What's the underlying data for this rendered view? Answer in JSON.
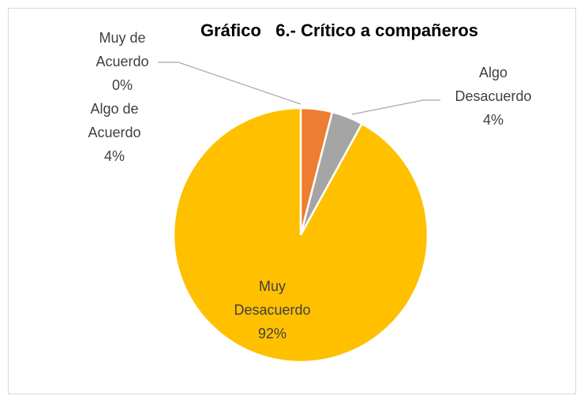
{
  "chart_data": {
    "type": "pie",
    "title": "Gráfico   6.- Crítico a compañeros",
    "categories": [
      "Muy de Acuerdo",
      "Algo de Acuerdo",
      "Algo Desacuerdo",
      "Muy Desacuerdo"
    ],
    "values": [
      0,
      4,
      4,
      92
    ],
    "value_labels": [
      "0%",
      "4%",
      "4%",
      "92%"
    ],
    "colors": [
      "#4472c4",
      "#ed7d31",
      "#a5a5a5",
      "#ffc000"
    ]
  }
}
